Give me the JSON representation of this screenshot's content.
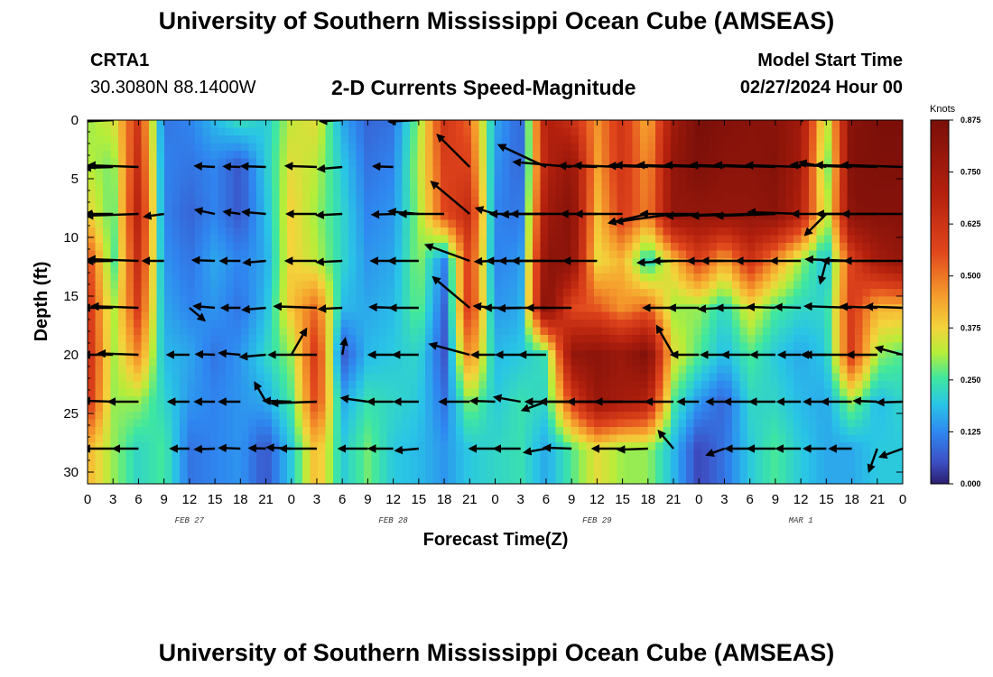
{
  "header": {
    "title": "University of Southern Mississippi Ocean Cube (AMSEAS)",
    "station_id": "CRTA1",
    "station_coords": "30.3080N  88.1400W",
    "plot_title": "2-D Currents Speed-Magnitude",
    "model_start_label": "Model Start Time",
    "model_start_value": "02/27/2024 Hour 00"
  },
  "footer": {
    "title": "University of Southern Mississippi Ocean Cube (AMSEAS)"
  },
  "chart_data": {
    "type": "heatmap",
    "xlabel": "Forecast Time(Z)",
    "ylabel": "Depth (ft)",
    "x_hours_range": [
      0,
      96
    ],
    "x_tick_labels": [
      "0",
      "3",
      "6",
      "9",
      "12",
      "15",
      "18",
      "21",
      "0",
      "3",
      "6",
      "9",
      "12",
      "15",
      "18",
      "21",
      "0",
      "3",
      "6",
      "9",
      "12",
      "15",
      "18",
      "21",
      "0",
      "3",
      "6",
      "9",
      "12",
      "15",
      "18",
      "21",
      "0"
    ],
    "date_labels": [
      {
        "text": "FEB 27",
        "hour": 12
      },
      {
        "text": "FEB 28",
        "hour": 36
      },
      {
        "text": "FEB 29",
        "hour": 60
      },
      {
        "text": "MAR 1",
        "hour": 84
      }
    ],
    "y_ticks": [
      0,
      5,
      10,
      15,
      20,
      25,
      30
    ],
    "y_range": [
      0,
      31
    ],
    "colorbar": {
      "unit": "Knots",
      "min": 0.0,
      "max": 0.875,
      "tick_labels": [
        "0.000",
        "0.125",
        "0.250",
        "0.375",
        "0.500",
        "0.625",
        "0.750",
        "0.875"
      ]
    },
    "rows": [
      {
        "depth": 0,
        "speed": [
          0.3,
          0.34,
          0.62,
          0.1,
          0.12,
          0.18,
          0.24,
          0.2,
          0.33,
          0.36,
          0.16,
          0.08,
          0.1,
          0.3,
          0.62,
          0.52,
          0.16,
          0.08,
          0.72,
          0.64,
          0.46,
          0.62,
          0.42,
          0.76,
          0.88,
          0.85,
          0.83,
          0.83,
          0.76,
          0.3,
          0.84,
          0.87,
          0.87
        ]
      },
      {
        "depth": 4,
        "speed": [
          0.32,
          0.28,
          0.66,
          0.12,
          0.1,
          0.12,
          0.06,
          0.2,
          0.36,
          0.32,
          0.2,
          0.1,
          0.12,
          0.32,
          0.58,
          0.58,
          0.14,
          0.08,
          0.7,
          0.8,
          0.44,
          0.62,
          0.46,
          0.8,
          0.86,
          0.82,
          0.82,
          0.84,
          0.74,
          0.25,
          0.85,
          0.86,
          0.86
        ]
      },
      {
        "depth": 8,
        "speed": [
          0.38,
          0.26,
          0.7,
          0.12,
          0.08,
          0.12,
          0.06,
          0.18,
          0.38,
          0.3,
          0.22,
          0.12,
          0.14,
          0.3,
          0.56,
          0.66,
          0.12,
          0.1,
          0.76,
          0.84,
          0.4,
          0.6,
          0.48,
          0.8,
          0.8,
          0.8,
          0.8,
          0.82,
          0.7,
          0.3,
          0.83,
          0.84,
          0.84
        ]
      },
      {
        "depth": 12,
        "speed": [
          0.58,
          0.24,
          0.66,
          0.14,
          0.1,
          0.16,
          0.12,
          0.16,
          0.38,
          0.32,
          0.22,
          0.14,
          0.16,
          0.3,
          0.12,
          0.6,
          0.12,
          0.14,
          0.82,
          0.82,
          0.36,
          0.42,
          0.2,
          0.4,
          0.58,
          0.42,
          0.62,
          0.46,
          0.3,
          0.18,
          0.58,
          0.74,
          0.8
        ]
      },
      {
        "depth": 16,
        "speed": [
          0.62,
          0.3,
          0.6,
          0.16,
          0.12,
          0.14,
          0.1,
          0.18,
          0.4,
          0.52,
          0.18,
          0.16,
          0.18,
          0.28,
          0.08,
          0.62,
          0.14,
          0.16,
          0.86,
          0.56,
          0.54,
          0.46,
          0.52,
          0.3,
          0.3,
          0.22,
          0.36,
          0.26,
          0.22,
          0.22,
          0.6,
          0.42,
          0.42
        ]
      },
      {
        "depth": 20,
        "speed": [
          0.66,
          0.3,
          0.48,
          0.18,
          0.16,
          0.1,
          0.14,
          0.22,
          0.3,
          0.62,
          0.06,
          0.18,
          0.2,
          0.22,
          0.06,
          0.5,
          0.18,
          0.2,
          0.24,
          0.8,
          0.82,
          0.78,
          0.86,
          0.36,
          0.26,
          0.18,
          0.26,
          0.2,
          0.16,
          0.2,
          0.6,
          0.3,
          0.26
        ]
      },
      {
        "depth": 24,
        "speed": [
          0.62,
          0.3,
          0.3,
          0.22,
          0.14,
          0.12,
          0.14,
          0.16,
          0.26,
          0.58,
          0.16,
          0.24,
          0.22,
          0.2,
          0.1,
          0.3,
          0.2,
          0.24,
          0.22,
          0.58,
          0.78,
          0.74,
          0.7,
          0.26,
          0.14,
          0.08,
          0.22,
          0.22,
          0.18,
          0.16,
          0.3,
          0.18,
          0.22
        ]
      },
      {
        "depth": 28,
        "speed": [
          0.42,
          0.3,
          0.22,
          0.26,
          0.1,
          0.12,
          0.14,
          0.06,
          0.2,
          0.42,
          0.2,
          0.28,
          0.2,
          0.18,
          0.14,
          0.2,
          0.22,
          0.24,
          0.16,
          0.26,
          0.36,
          0.3,
          0.3,
          0.18,
          0.04,
          0.1,
          0.2,
          0.26,
          0.2,
          0.16,
          0.16,
          0.2,
          0.2
        ]
      }
    ],
    "vectors": [
      {
        "depth": 0,
        "dir": [
          175,
          183,
          null,
          null,
          null,
          null,
          null,
          null,
          null,
          null,
          183,
          null,
          null,
          183,
          null,
          null,
          null,
          null,
          null,
          null,
          null,
          null,
          null,
          null,
          null,
          null,
          null,
          null,
          null,
          175,
          null,
          null,
          null
        ]
      },
      {
        "depth": 4,
        "dir": [
          null,
          182,
          178,
          null,
          null,
          177,
          178,
          178,
          null,
          178,
          185,
          null,
          178,
          null,
          null,
          135,
          null,
          null,
          155,
          175,
          178,
          178,
          178,
          178,
          178,
          178,
          178,
          178,
          178,
          170,
          178,
          178,
          178
        ]
      },
      {
        "depth": 8,
        "dir": [
          null,
          180,
          182,
          188,
          null,
          168,
          172,
          175,
          null,
          180,
          183,
          null,
          182,
          175,
          180,
          140,
          163,
          182,
          180,
          180,
          180,
          180,
          193,
          188,
          180,
          182,
          182,
          182,
          178,
          225,
          180,
          180,
          180
        ]
      },
      {
        "depth": 12,
        "dir": [
          null,
          181,
          178,
          180,
          null,
          178,
          180,
          185,
          null,
          180,
          183,
          null,
          180,
          180,
          null,
          160,
          182,
          180,
          180,
          180,
          180,
          null,
          null,
          183,
          180,
          180,
          180,
          180,
          180,
          255,
          178,
          180,
          180
        ]
      },
      {
        "depth": 16,
        "dir": [
          null,
          180,
          178,
          null,
          320,
          175,
          180,
          185,
          null,
          178,
          183,
          null,
          178,
          180,
          null,
          140,
          175,
          182,
          180,
          180,
          null,
          null,
          null,
          180,
          180,
          183,
          180,
          178,
          178,
          null,
          178,
          178,
          178
        ]
      },
      {
        "depth": 20,
        "dir": [
          null,
          180,
          178,
          null,
          180,
          178,
          175,
          185,
          60,
          180,
          80,
          null,
          180,
          180,
          null,
          165,
          180,
          180,
          180,
          null,
          null,
          null,
          null,
          120,
          180,
          180,
          180,
          180,
          180,
          180,
          180,
          180,
          165
        ]
      },
      {
        "depth": 24,
        "dir": [
          null,
          178,
          180,
          null,
          180,
          180,
          180,
          120,
          178,
          182,
          null,
          172,
          180,
          180,
          null,
          180,
          178,
          170,
          200,
          180,
          180,
          180,
          180,
          180,
          180,
          180,
          180,
          180,
          180,
          180,
          180,
          178,
          182
        ]
      },
      {
        "depth": 28,
        "dir": [
          null,
          180,
          180,
          null,
          180,
          182,
          178,
          178,
          177,
          180,
          null,
          180,
          180,
          185,
          null,
          null,
          180,
          180,
          190,
          178,
          null,
          180,
          182,
          130,
          null,
          200,
          180,
          180,
          180,
          180,
          180,
          250,
          200
        ]
      }
    ]
  }
}
